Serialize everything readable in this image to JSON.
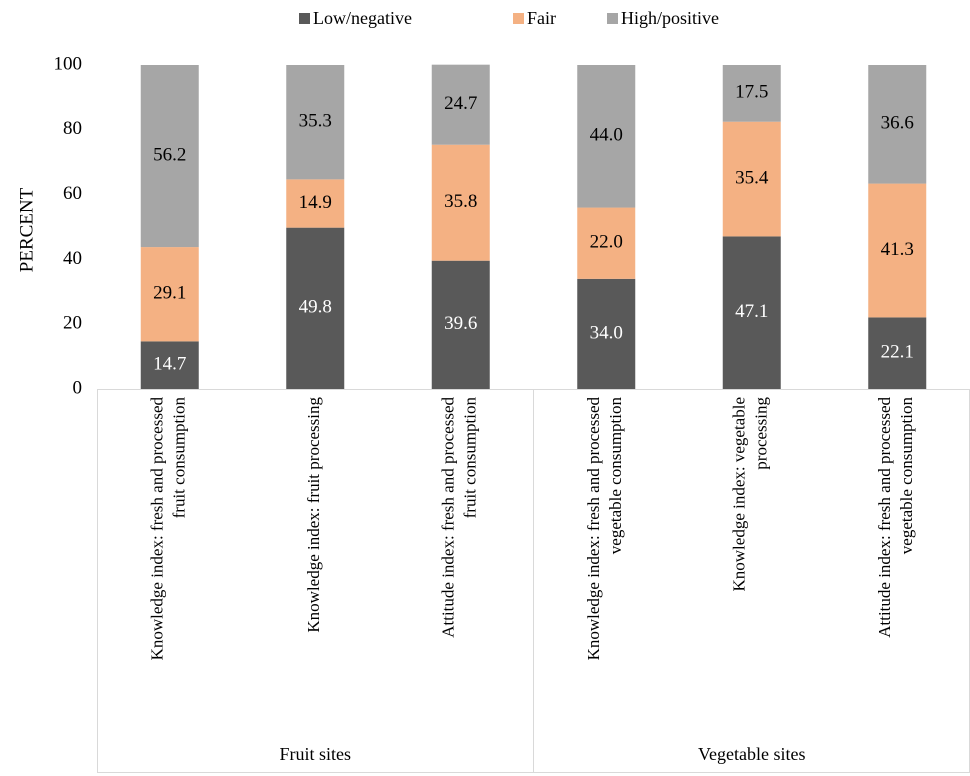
{
  "chart_data": {
    "type": "bar",
    "stacked": true,
    "ylabel": "PERCENT",
    "ylim": [
      0,
      100
    ],
    "yticks": [
      0,
      20,
      40,
      60,
      80,
      100
    ],
    "grid": false,
    "legend_position": "top",
    "categories": [
      [
        "Knowledge index: fresh and processed",
        "fruit consumption"
      ],
      [
        "Knowledge index: fruit processing"
      ],
      [
        "Attitude index: fresh and processed",
        "fruit consumption"
      ],
      [
        "Knowledge index: fresh and processed",
        "vegetable consumption"
      ],
      [
        "Knowledge index: vegetable",
        "processing"
      ],
      [
        "Attitude index: fresh and processed",
        "vegetable consumption"
      ]
    ],
    "groups": [
      {
        "label": "Fruit sites",
        "categories": [
          0,
          1,
          2
        ]
      },
      {
        "label": "Vegetable sites",
        "categories": [
          3,
          4,
          5
        ]
      }
    ],
    "series": [
      {
        "name": "Low/negative",
        "color": "#595959",
        "label_color": "#ffffff",
        "values": [
          14.7,
          49.8,
          39.6,
          34.0,
          47.1,
          22.1
        ],
        "labels": [
          "14.7",
          "49.8",
          "39.6",
          "34.0",
          "47.1",
          "22.1"
        ]
      },
      {
        "name": "Fair",
        "color": "#f4b183",
        "label_color": "#000000",
        "values": [
          29.1,
          14.9,
          35.8,
          22.0,
          35.4,
          41.3
        ],
        "labels": [
          "29.1",
          "14.9",
          "35.8",
          "22.0",
          "35.4",
          "41.3"
        ]
      },
      {
        "name": "High/positive",
        "color": "#a6a6a6",
        "label_color": "#000000",
        "values": [
          56.2,
          35.3,
          24.7,
          44.0,
          17.5,
          36.6
        ],
        "labels": [
          "56.2",
          "35.3",
          "24.7",
          "44.0",
          "17.5",
          "36.6"
        ]
      }
    ]
  }
}
